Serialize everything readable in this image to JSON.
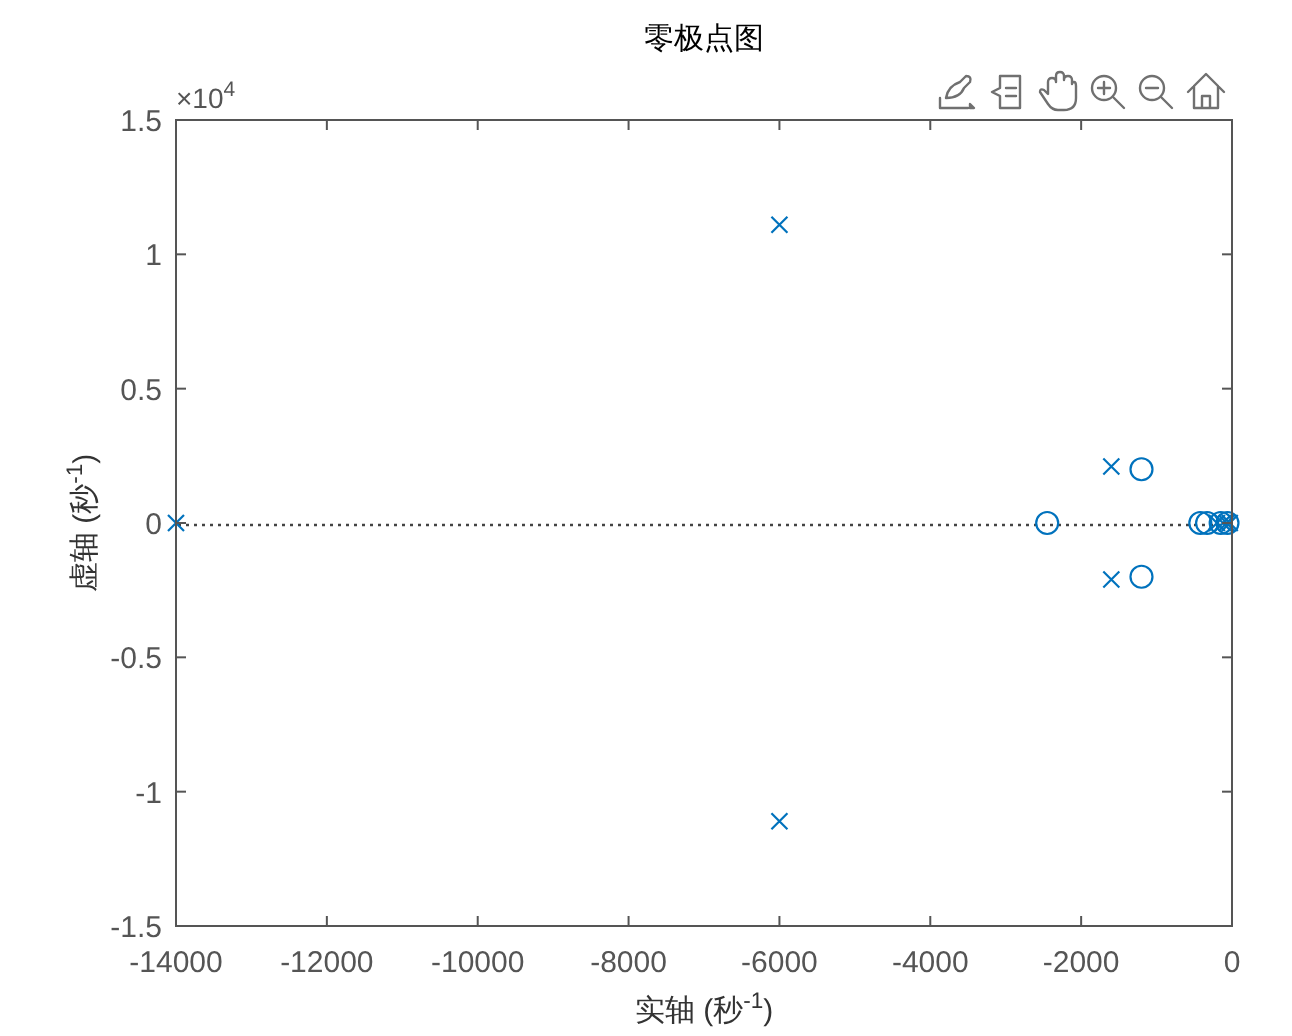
{
  "chart_data": {
    "type": "scatter",
    "title": "零极点图",
    "xlabel": "实轴 (秒$^{-1}$)",
    "ylabel": "虚轴 (秒$^{-1}$)",
    "annotations": [
      "×10$^{4}$"
    ],
    "xlim": [
      -14000,
      0
    ],
    "xticks": [
      -14000,
      -12000,
      -10000,
      -8000,
      -6000,
      -4000,
      -2000,
      0
    ],
    "ylim": [
      -1.5,
      1.5
    ],
    "yticks": [
      -1.5,
      -1,
      -0.5,
      0,
      0.5,
      1,
      1.5
    ],
    "ref_lines": [
      {
        "axis": "y",
        "value": 0,
        "color": "#444444",
        "line_style": "dotted"
      }
    ],
    "series": [
      {
        "marker": "cross",
        "color": "#0072bd",
        "x": [
          -14000,
          -6000,
          -6000,
          -1600,
          -1600,
          -200,
          -120,
          -70,
          -30
        ],
        "values": [
          0,
          1.11,
          -1.11,
          0.21,
          -0.21,
          0,
          0,
          0,
          0
        ]
      },
      {
        "marker": "circle",
        "color": "#0072bd",
        "x": [
          -2450,
          -1200,
          -1200,
          -420,
          -330,
          -150,
          -60
        ],
        "values": [
          0,
          0.2,
          -0.2,
          0,
          0,
          0,
          0
        ]
      }
    ]
  }
}
